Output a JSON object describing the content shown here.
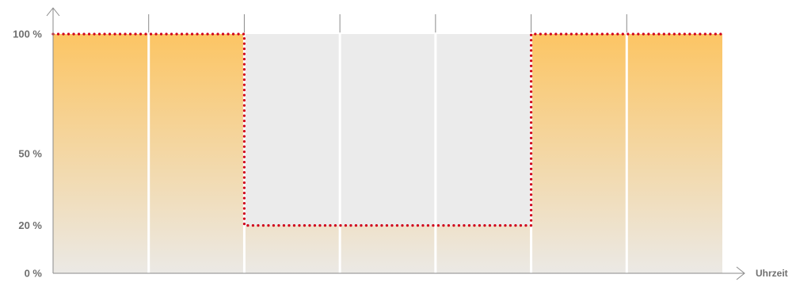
{
  "chart_data": {
    "type": "bar",
    "categories": [
      "",
      "",
      "",
      "",
      "",
      "",
      ""
    ],
    "values": [
      100,
      100,
      20,
      20,
      20,
      100,
      100
    ],
    "capacity": 100,
    "xlabel": "Uhrzeit",
    "ylabel": "",
    "ylim": [
      0,
      100
    ],
    "yticks": [
      {
        "value": 0,
        "label": "0 %"
      },
      {
        "value": 20,
        "label": "20 %"
      },
      {
        "value": 50,
        "label": "50 %"
      },
      {
        "value": 100,
        "label": "100 %"
      }
    ],
    "grid": false,
    "colors": {
      "fill_top": "#fcc564",
      "fill_bottom": "#ebe9e5",
      "empty": "#ebebeb",
      "level_line": "#d0021b",
      "axis": "#8a8a8a",
      "divider": "#ffffff"
    }
  }
}
